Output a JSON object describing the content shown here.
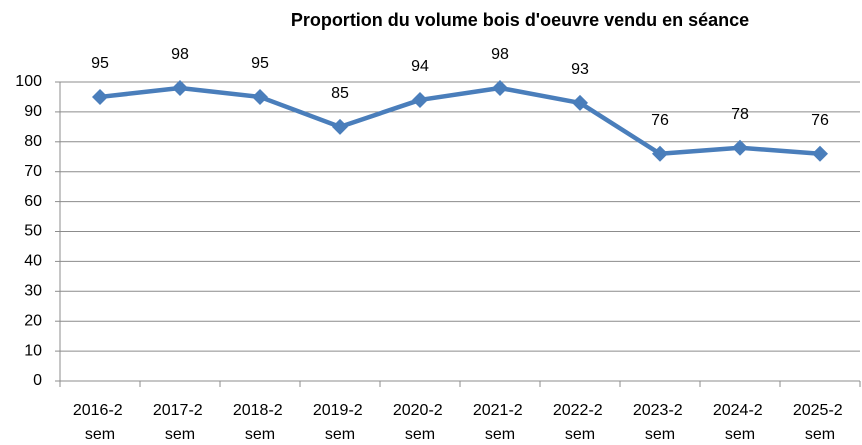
{
  "chart_data": {
    "type": "line",
    "title": "Proportion du volume bois d'oeuvre vendu en séance",
    "categories": [
      "2016-2 sem",
      "2017-2 sem",
      "2018-2 sem",
      "2019-2 sem",
      "2020-2 sem",
      "2021-2 sem",
      "2022-2 sem",
      "2023-2 sem",
      "2024-2 sem",
      "2025-2 sem"
    ],
    "series": [
      {
        "name": "Proportion",
        "color": "#4a7ebb",
        "values": [
          95,
          98,
          95,
          85,
          94,
          98,
          93,
          76,
          78,
          76
        ]
      }
    ],
    "ylim": [
      0,
      100
    ],
    "yticks": [
      0,
      10,
      20,
      30,
      40,
      50,
      60,
      70,
      80,
      90,
      100
    ],
    "grid": true,
    "marker": "diamond"
  }
}
